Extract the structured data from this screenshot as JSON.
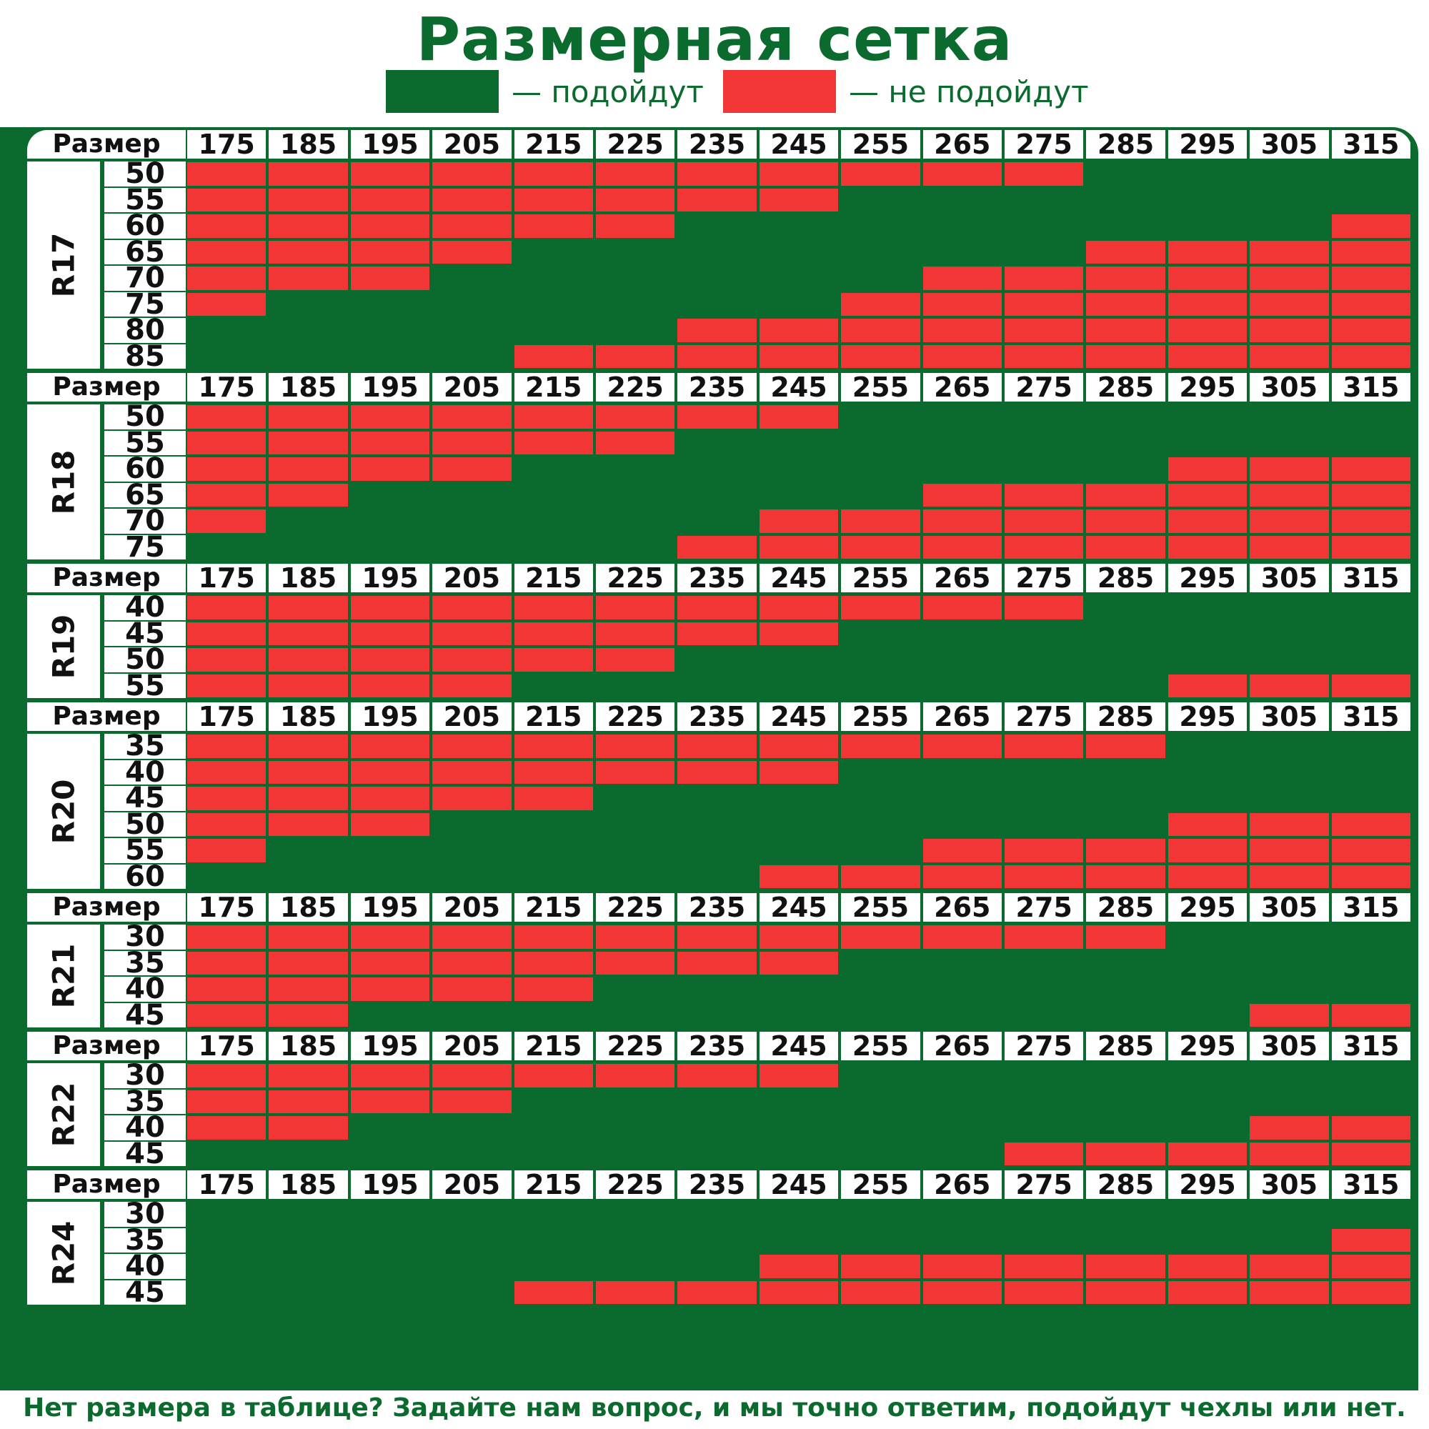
{
  "title": "Размерная сетка",
  "legend": [
    {
      "color": "#0b6a2d",
      "label": "— подойдут"
    },
    {
      "color": "#f23535",
      "label": "— не подойдут"
    }
  ],
  "colors": {
    "green": "#0b6a2d",
    "red": "#f23535"
  },
  "header_label": "Размер",
  "widths": [
    "175",
    "185",
    "195",
    "205",
    "215",
    "225",
    "235",
    "245",
    "255",
    "265",
    "275",
    "285",
    "295",
    "305",
    "315"
  ],
  "sections": [
    {
      "label": "R17",
      "rows": [
        {
          "profile": "50",
          "fit": "000000000001111"
        },
        {
          "profile": "55",
          "fit": "000000001111111"
        },
        {
          "profile": "60",
          "fit": "000000111111110"
        },
        {
          "profile": "65",
          "fit": "000011111110000"
        },
        {
          "profile": "70",
          "fit": "000111111000000"
        },
        {
          "profile": "75",
          "fit": "011111110000000"
        },
        {
          "profile": "80",
          "fit": "111111000000000"
        },
        {
          "profile": "85",
          "fit": "111100000000000"
        }
      ]
    },
    {
      "label": "R18",
      "rows": [
        {
          "profile": "50",
          "fit": "000000001111111"
        },
        {
          "profile": "55",
          "fit": "000000111111111"
        },
        {
          "profile": "60",
          "fit": "000011111111000"
        },
        {
          "profile": "65",
          "fit": "001111111000000"
        },
        {
          "profile": "70",
          "fit": "011111100000000"
        },
        {
          "profile": "75",
          "fit": "111111000000000"
        }
      ]
    },
    {
      "label": "R19",
      "rows": [
        {
          "profile": "40",
          "fit": "000000000001111"
        },
        {
          "profile": "45",
          "fit": "000000001111111"
        },
        {
          "profile": "50",
          "fit": "000000111111111"
        },
        {
          "profile": "55",
          "fit": "000011111111000"
        }
      ]
    },
    {
      "label": "R20",
      "rows": [
        {
          "profile": "35",
          "fit": "000000000000111"
        },
        {
          "profile": "40",
          "fit": "000000001111111"
        },
        {
          "profile": "45",
          "fit": "000001111111111"
        },
        {
          "profile": "50",
          "fit": "000111111111000"
        },
        {
          "profile": "55",
          "fit": "011111111000000"
        },
        {
          "profile": "60",
          "fit": "111111100000000"
        }
      ]
    },
    {
      "label": "R21",
      "rows": [
        {
          "profile": "30",
          "fit": "000000000000111"
        },
        {
          "profile": "35",
          "fit": "000000001111111"
        },
        {
          "profile": "40",
          "fit": "000001111111111"
        },
        {
          "profile": "45",
          "fit": "001111111111100"
        }
      ]
    },
    {
      "label": "R22",
      "rows": [
        {
          "profile": "30",
          "fit": "000000001111111"
        },
        {
          "profile": "35",
          "fit": "000011111111111"
        },
        {
          "profile": "40",
          "fit": "001111111111100"
        },
        {
          "profile": "45",
          "fit": "111111111100000"
        }
      ]
    },
    {
      "label": "R24",
      "rows": [
        {
          "profile": "30",
          "fit": "111111111111111"
        },
        {
          "profile": "35",
          "fit": "111111111111110"
        },
        {
          "profile": "40",
          "fit": "111111100000000"
        },
        {
          "profile": "45",
          "fit": "111100000000000"
        }
      ]
    }
  ],
  "footer": "Нет размера в таблице? Задайте нам вопрос, и мы точно ответим, подойдут чехлы или нет."
}
